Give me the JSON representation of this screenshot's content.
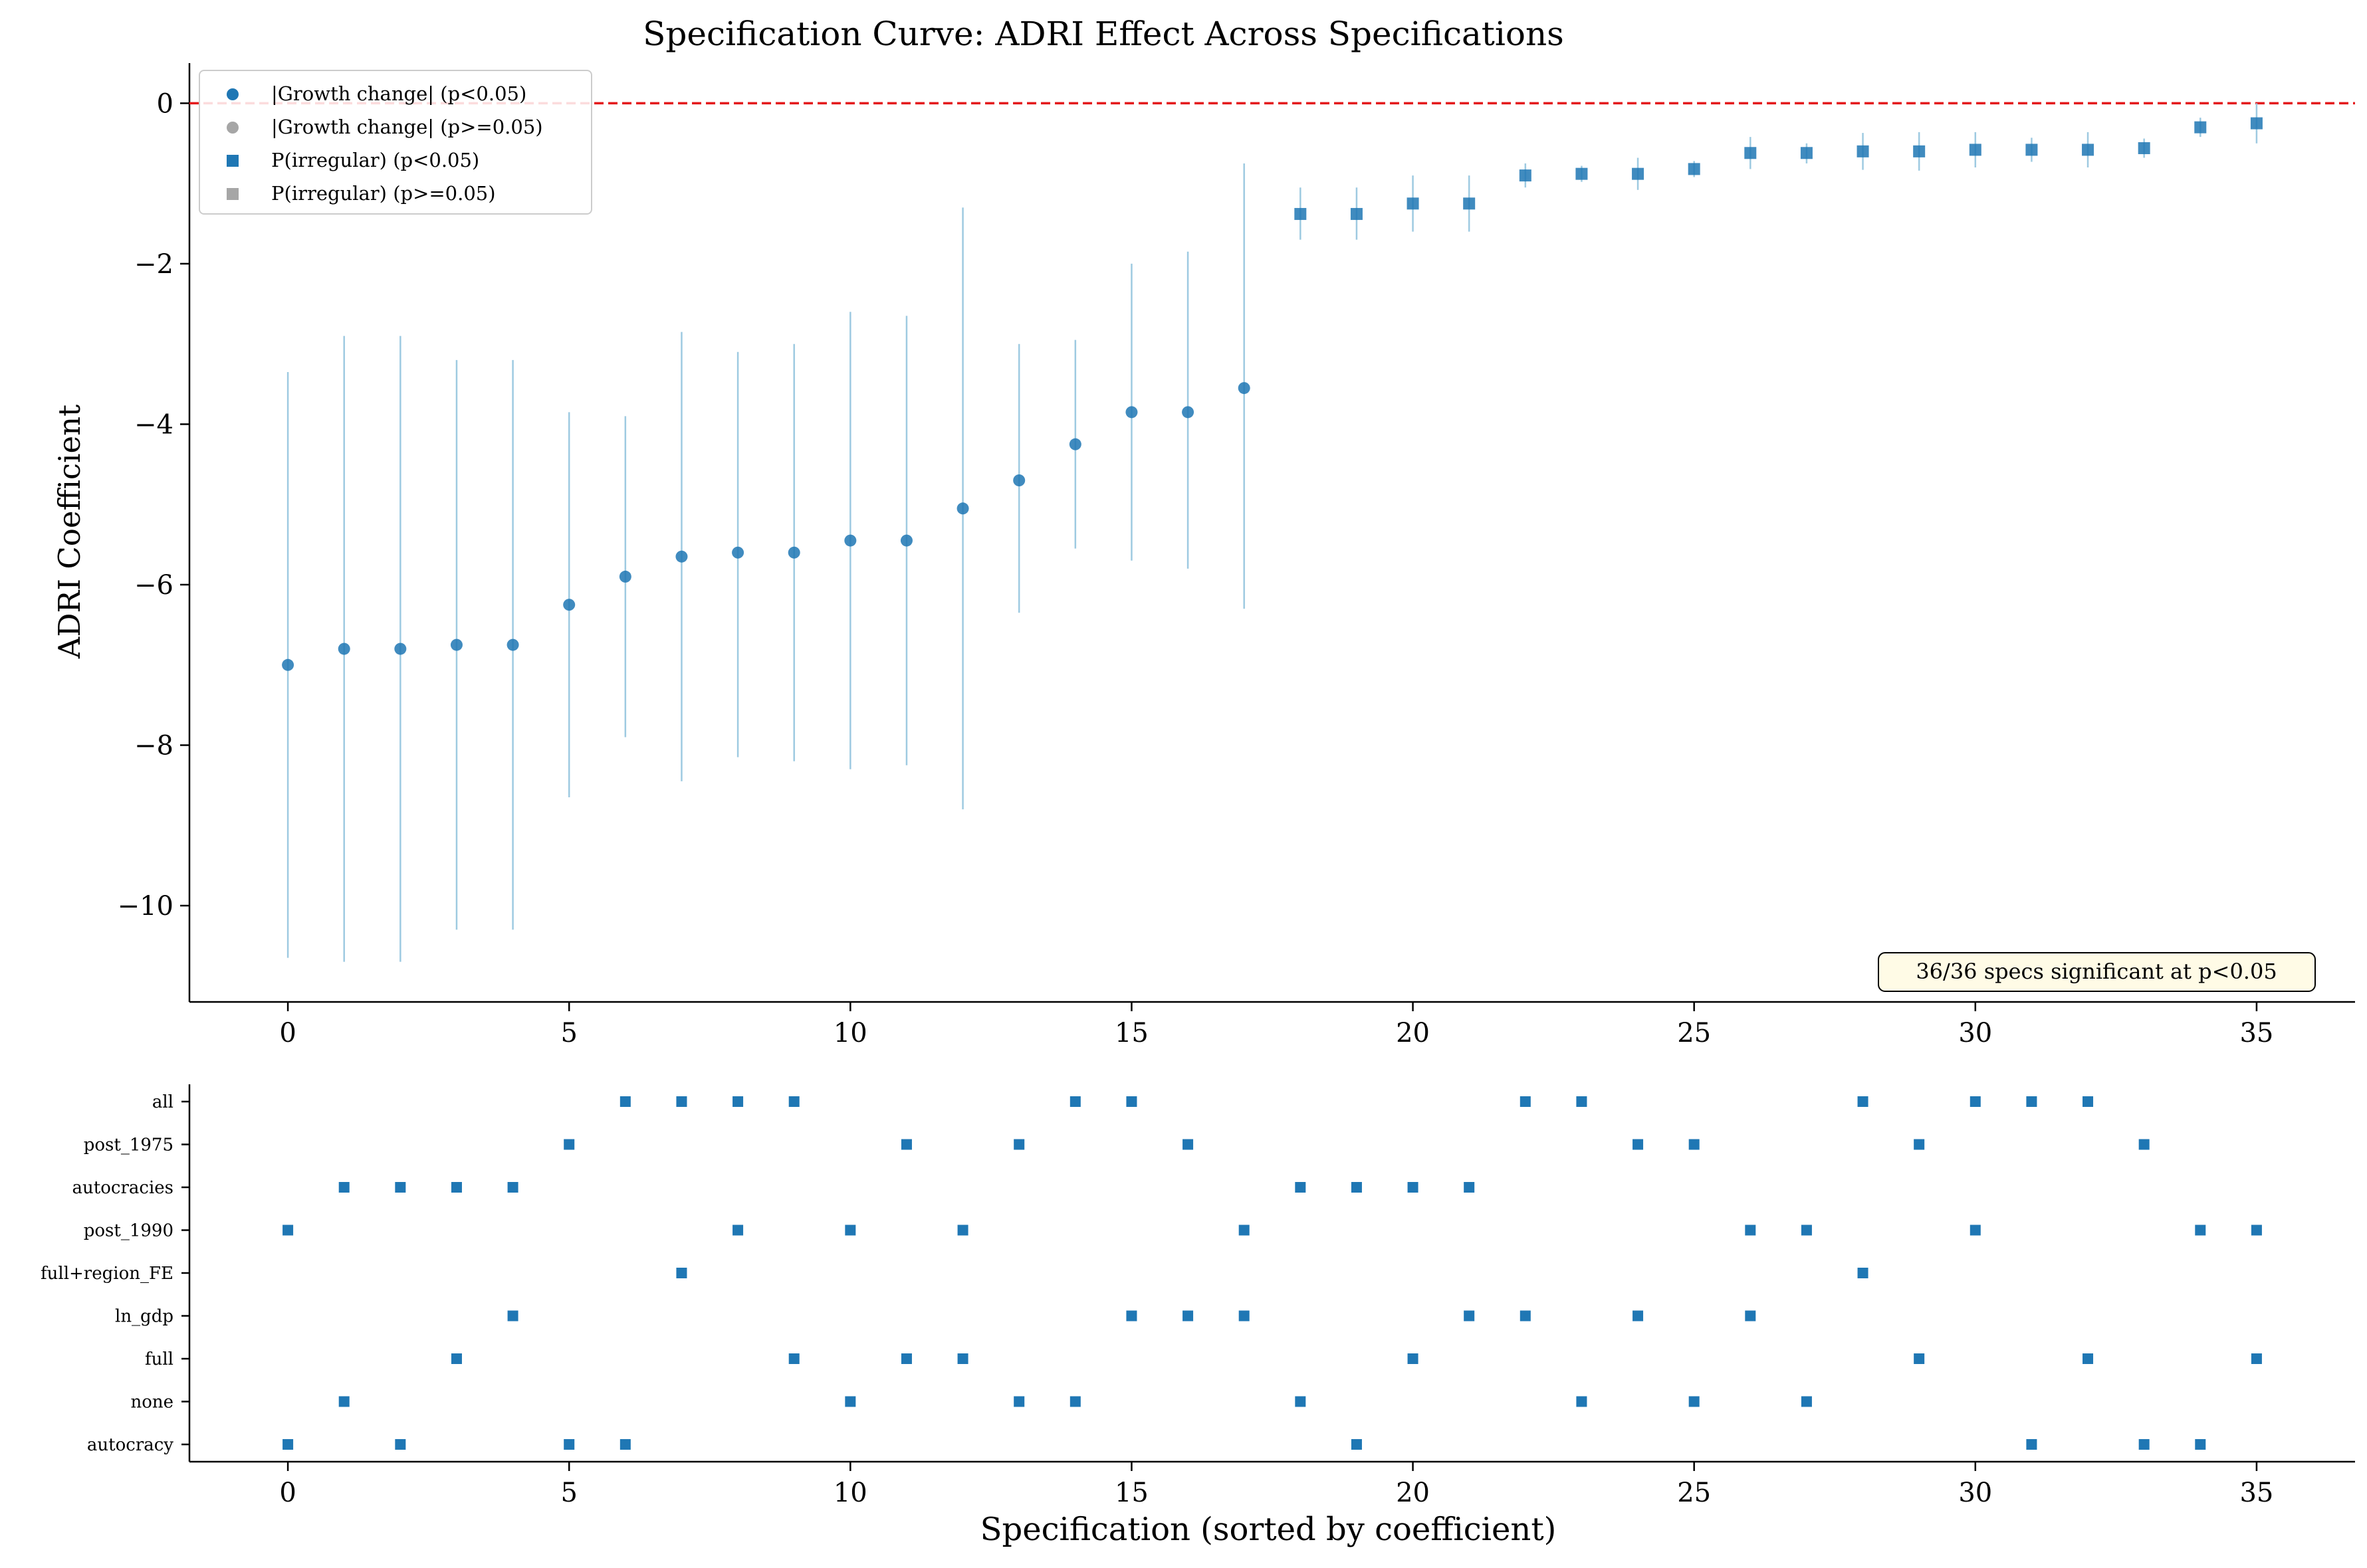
{
  "chart_data": [
    {
      "type": "scatter",
      "title": "Specification Curve: ADRI Effect Across Specifications",
      "xlabel": "",
      "ylabel": "ADRI Coefficient",
      "xlim": [
        -1.75,
        36.75
      ],
      "ylim": [
        -11.2,
        0.5
      ],
      "xticks": [
        0,
        5,
        10,
        15,
        20,
        25,
        30,
        35
      ],
      "yticks": [
        0,
        -2,
        -4,
        -6,
        -8,
        -10
      ],
      "reference_line": {
        "y": 0,
        "color": "#e41a1c",
        "style": "dashed"
      },
      "legend": {
        "placement": "top-left",
        "entries": [
          {
            "label": "|Growth change| (p<0.05)",
            "marker": "circle",
            "color": "#1f77b4"
          },
          {
            "label": "|Growth change| (p>=0.05)",
            "marker": "circle",
            "color": "#a6a6a6"
          },
          {
            "label": "P(irregular) (p<0.05)",
            "marker": "square",
            "color": "#1f77b4"
          },
          {
            "label": "P(irregular) (p>=0.05)",
            "marker": "square",
            "color": "#a6a6a6"
          }
        ]
      },
      "annotation": "36/36 specs significant at p<0.05",
      "series": [
        {
          "name": "|Growth change| (p<0.05)",
          "marker": "circle",
          "points": [
            {
              "x": 0,
              "y": -7.0,
              "lo": -10.65,
              "hi": -3.35
            },
            {
              "x": 1,
              "y": -6.8,
              "lo": -10.7,
              "hi": -2.9
            },
            {
              "x": 2,
              "y": -6.8,
              "lo": -10.7,
              "hi": -2.9
            },
            {
              "x": 3,
              "y": -6.75,
              "lo": -10.3,
              "hi": -3.2
            },
            {
              "x": 4,
              "y": -6.75,
              "lo": -10.3,
              "hi": -3.2
            },
            {
              "x": 5,
              "y": -6.25,
              "lo": -8.65,
              "hi": -3.85
            },
            {
              "x": 6,
              "y": -5.9,
              "lo": -7.9,
              "hi": -3.9
            },
            {
              "x": 7,
              "y": -5.65,
              "lo": -8.45,
              "hi": -2.85
            },
            {
              "x": 8,
              "y": -5.6,
              "lo": -8.15,
              "hi": -3.1
            },
            {
              "x": 9,
              "y": -5.6,
              "lo": -8.2,
              "hi": -3.0
            },
            {
              "x": 10,
              "y": -5.45,
              "lo": -8.3,
              "hi": -2.6
            },
            {
              "x": 11,
              "y": -5.45,
              "lo": -8.25,
              "hi": -2.65
            },
            {
              "x": 12,
              "y": -5.05,
              "lo": -8.8,
              "hi": -1.3
            },
            {
              "x": 13,
              "y": -4.7,
              "lo": -6.35,
              "hi": -3.0
            },
            {
              "x": 14,
              "y": -4.25,
              "lo": -5.55,
              "hi": -2.95
            },
            {
              "x": 15,
              "y": -3.85,
              "lo": -5.7,
              "hi": -2.0
            },
            {
              "x": 16,
              "y": -3.85,
              "lo": -5.8,
              "hi": -1.85
            },
            {
              "x": 17,
              "y": -3.55,
              "lo": -6.3,
              "hi": -0.75
            }
          ]
        },
        {
          "name": "P(irregular) (p<0.05)",
          "marker": "square",
          "points": [
            {
              "x": 18,
              "y": -1.38,
              "lo": -1.7,
              "hi": -1.05
            },
            {
              "x": 19,
              "y": -1.38,
              "lo": -1.7,
              "hi": -1.05
            },
            {
              "x": 20,
              "y": -1.25,
              "lo": -1.6,
              "hi": -0.9
            },
            {
              "x": 21,
              "y": -1.25,
              "lo": -1.6,
              "hi": -0.9
            },
            {
              "x": 22,
              "y": -0.9,
              "lo": -1.05,
              "hi": -0.75
            },
            {
              "x": 23,
              "y": -0.88,
              "lo": -0.98,
              "hi": -0.78
            },
            {
              "x": 24,
              "y": -0.88,
              "lo": -1.08,
              "hi": -0.68
            },
            {
              "x": 25,
              "y": -0.82,
              "lo": -0.92,
              "hi": -0.72
            },
            {
              "x": 26,
              "y": -0.62,
              "lo": -0.82,
              "hi": -0.42
            },
            {
              "x": 27,
              "y": -0.62,
              "lo": -0.75,
              "hi": -0.5
            },
            {
              "x": 28,
              "y": -0.6,
              "lo": -0.83,
              "hi": -0.37
            },
            {
              "x": 29,
              "y": -0.6,
              "lo": -0.84,
              "hi": -0.36
            },
            {
              "x": 30,
              "y": -0.58,
              "lo": -0.8,
              "hi": -0.36
            },
            {
              "x": 31,
              "y": -0.58,
              "lo": -0.73,
              "hi": -0.43
            },
            {
              "x": 32,
              "y": -0.58,
              "lo": -0.8,
              "hi": -0.36
            },
            {
              "x": 33,
              "y": -0.56,
              "lo": -0.68,
              "hi": -0.44
            },
            {
              "x": 34,
              "y": -0.3,
              "lo": -0.42,
              "hi": -0.18
            },
            {
              "x": 35,
              "y": -0.25,
              "lo": -0.5,
              "hi": 0.0
            }
          ]
        }
      ]
    },
    {
      "type": "scatter",
      "xlabel": "Specification (sorted by coefficient)",
      "ylabel": "",
      "xlim": [
        -1.75,
        36.75
      ],
      "xticks": [
        0,
        5,
        10,
        15,
        20,
        25,
        30,
        35
      ],
      "rows": [
        "all",
        "post_1975",
        "autocracies",
        "post_1990",
        "full+region_FE",
        "ln_gdp",
        "full",
        "none",
        "autocracy"
      ],
      "marker": "square",
      "color": "#1f77b4",
      "points": [
        {
          "row": "all",
          "x": [
            6,
            7,
            8,
            9,
            14,
            15,
            22,
            23,
            28,
            30,
            31,
            32
          ]
        },
        {
          "row": "post_1975",
          "x": [
            5,
            11,
            13,
            16,
            24,
            25,
            29,
            33
          ]
        },
        {
          "row": "autocracies",
          "x": [
            1,
            2,
            3,
            4,
            18,
            19,
            20,
            21
          ]
        },
        {
          "row": "post_1990",
          "x": [
            0,
            8,
            10,
            12,
            17,
            26,
            27,
            30,
            34,
            35
          ]
        },
        {
          "row": "full+region_FE",
          "x": [
            7,
            28
          ]
        },
        {
          "row": "ln_gdp",
          "x": [
            4,
            15,
            16,
            17,
            21,
            22,
            24,
            26
          ]
        },
        {
          "row": "full",
          "x": [
            3,
            9,
            11,
            12,
            20,
            29,
            32,
            35
          ]
        },
        {
          "row": "none",
          "x": [
            1,
            10,
            13,
            14,
            18,
            23,
            25,
            27
          ]
        },
        {
          "row": "autocracy",
          "x": [
            0,
            2,
            5,
            6,
            19,
            31,
            33,
            34
          ]
        }
      ]
    }
  ]
}
